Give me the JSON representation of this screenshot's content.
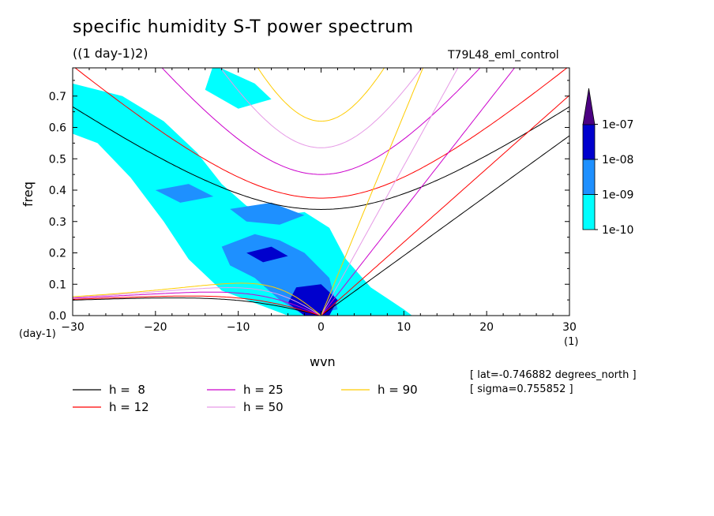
{
  "title": "specific humidity S-T power spectrum",
  "subtitle": "((1 day-1)2)",
  "run_name": "T79L48_eml_control",
  "info": {
    "lat": "[ lat=-0.746882 degrees_north ]",
    "sigma": "[ sigma=0.755852 ]"
  },
  "chart_data": {
    "type": "heatmap",
    "title": "specific humidity S-T power spectrum",
    "subtitle": "((1 day-1)2)",
    "xlabel": "wvn",
    "ylabel": "freq",
    "x_unit": "(1)",
    "y_unit": "(day-1)",
    "xlim": [
      -30,
      30
    ],
    "ylim": [
      0,
      0.79
    ],
    "x_ticks": [
      -30,
      -20,
      -10,
      0,
      10,
      20,
      30
    ],
    "x_tick_labels": [
      "-30",
      "-20",
      "-10",
      "0",
      "10",
      "20",
      "30"
    ],
    "y_ticks": [
      0.0,
      0.1,
      0.2,
      0.3,
      0.4,
      0.5,
      0.6,
      0.7
    ],
    "y_tick_labels": [
      "0.0",
      "0.1",
      "0.2",
      "0.3",
      "0.4",
      "0.5",
      "0.6",
      "0.7"
    ],
    "colorbar": {
      "levels": [
        "1e-10",
        "1e-09",
        "1e-08",
        "1e-07"
      ],
      "colors": [
        "#00ffff",
        "#1e90ff",
        "#0000cd",
        "#4b0082"
      ]
    },
    "power_regions": [
      {
        "level": 0,
        "points": [
          [
            -30,
            0.74
          ],
          [
            -24,
            0.7
          ],
          [
            -19,
            0.62
          ],
          [
            -15,
            0.52
          ],
          [
            -12,
            0.42
          ],
          [
            -9,
            0.35
          ],
          [
            -5,
            0.32
          ],
          [
            -2,
            0.33
          ],
          [
            1,
            0.28
          ],
          [
            3,
            0.18
          ],
          [
            6,
            0.09
          ],
          [
            10,
            0.02
          ],
          [
            11,
            0.0
          ],
          [
            -4,
            0.0
          ],
          [
            -12,
            0.08
          ],
          [
            -16,
            0.18
          ],
          [
            -19,
            0.3
          ],
          [
            -23,
            0.44
          ],
          [
            -27,
            0.55
          ],
          [
            -30,
            0.58
          ]
        ]
      },
      {
        "level": 0,
        "points": [
          [
            -13,
            0.8
          ],
          [
            -8,
            0.74
          ],
          [
            -6,
            0.69
          ],
          [
            -10,
            0.66
          ],
          [
            -14,
            0.72
          ]
        ]
      },
      {
        "level": 1,
        "points": [
          [
            -12,
            0.22
          ],
          [
            -8,
            0.26
          ],
          [
            -5,
            0.24
          ],
          [
            -2,
            0.2
          ],
          [
            1,
            0.12
          ],
          [
            2,
            0.02
          ],
          [
            -2,
            0.0
          ],
          [
            -5,
            0.05
          ],
          [
            -8,
            0.12
          ],
          [
            -11,
            0.16
          ]
        ]
      },
      {
        "level": 1,
        "points": [
          [
            -11,
            0.34
          ],
          [
            -6,
            0.36
          ],
          [
            -2,
            0.32
          ],
          [
            -5,
            0.29
          ],
          [
            -9,
            0.3
          ]
        ]
      },
      {
        "level": 1,
        "points": [
          [
            -20,
            0.4
          ],
          [
            -16,
            0.42
          ],
          [
            -13,
            0.38
          ],
          [
            -17,
            0.36
          ]
        ]
      },
      {
        "level": 2,
        "points": [
          [
            -3,
            0.09
          ],
          [
            0,
            0.1
          ],
          [
            2,
            0.05
          ],
          [
            1,
            0.0
          ],
          [
            -2,
            0.0
          ],
          [
            -4,
            0.04
          ]
        ]
      },
      {
        "level": 2,
        "points": [
          [
            -9,
            0.2
          ],
          [
            -6,
            0.22
          ],
          [
            -4,
            0.19
          ],
          [
            -7,
            0.17
          ]
        ]
      }
    ],
    "series": [
      {
        "name": "h =  8",
        "color": "#000000",
        "equivalent_depth": 8
      },
      {
        "name": "h = 12",
        "color": "#ff0000",
        "equivalent_depth": 12
      },
      {
        "name": "h = 25",
        "color": "#cc00cc",
        "equivalent_depth": 25
      },
      {
        "name": "h = 50",
        "color": "#e69ae6",
        "equivalent_depth": 50
      },
      {
        "name": "h = 90",
        "color": "#ffcc00",
        "equivalent_depth": 90
      }
    ],
    "legend_position": "bottom"
  }
}
